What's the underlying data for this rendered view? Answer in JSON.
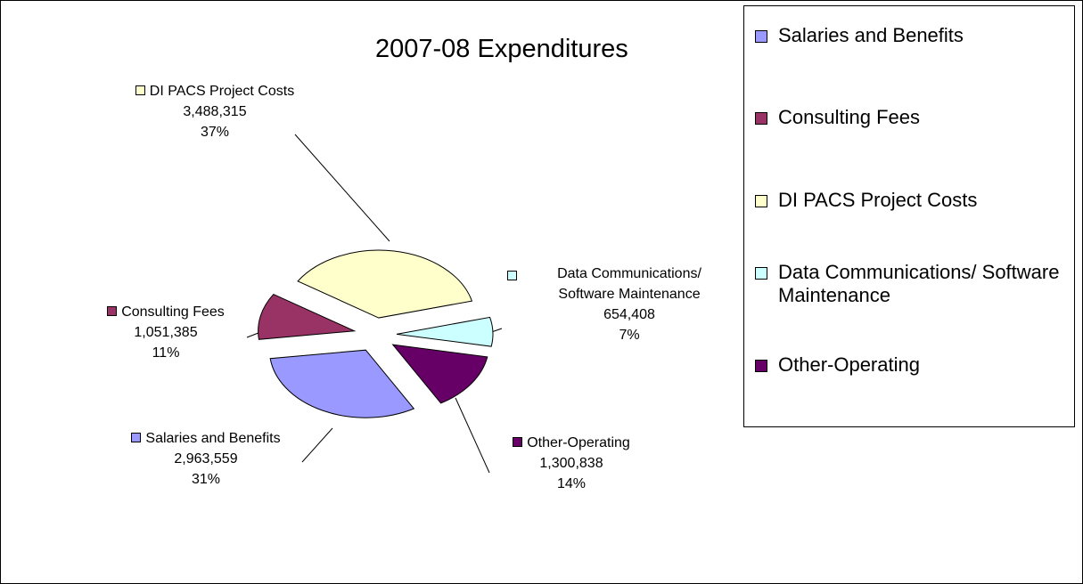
{
  "chart_data": {
    "type": "pie",
    "title": "2007-08 Expenditures",
    "categories": [
      "Salaries and Benefits",
      "Consulting Fees",
      "DI PACS Project Costs",
      "Data Communications/ Software Maintenance",
      "Other-Operating"
    ],
    "values": [
      2963559,
      1051385,
      3488315,
      654408,
      1300838
    ],
    "value_labels": [
      "2,963,559",
      "1,051,385",
      "3,488,315",
      "654,408",
      "1,300,838"
    ],
    "percent_labels": [
      "31%",
      "11%",
      "37%",
      "7%",
      "14%"
    ],
    "colors": [
      "#9999ff",
      "#993366",
      "#ffffcc",
      "#ccffff",
      "#660066"
    ],
    "legend": "right"
  }
}
